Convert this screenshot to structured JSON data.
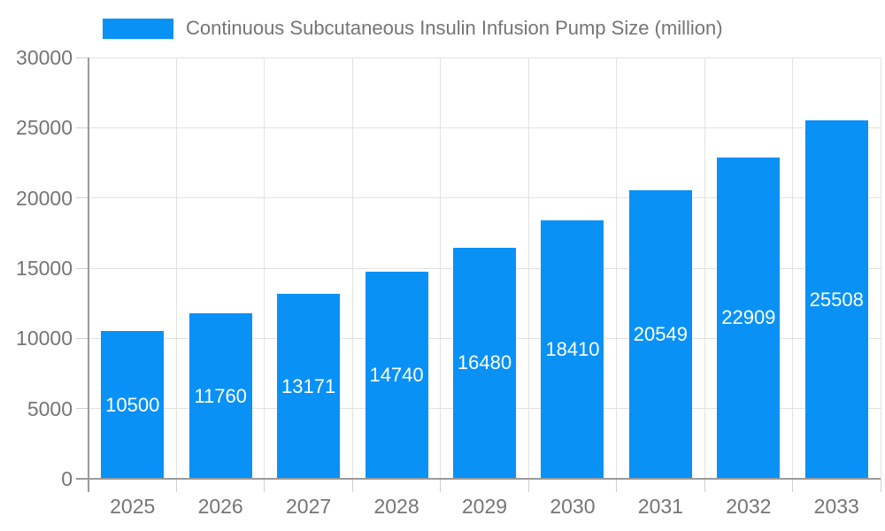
{
  "legend": {
    "label": "Continuous Subcutaneous Insulin Infusion Pump Size (million)"
  },
  "chart_data": {
    "type": "bar",
    "title": "Continuous Subcutaneous Insulin Infusion Pump Size (million)",
    "categories": [
      "2025",
      "2026",
      "2027",
      "2028",
      "2029",
      "2030",
      "2031",
      "2032",
      "2033"
    ],
    "values": [
      10500,
      11760,
      13171,
      14740,
      16480,
      18410,
      20549,
      22909,
      25508
    ],
    "xlabel": "",
    "ylabel": "",
    "ylim": [
      0,
      30000
    ],
    "yticks": [
      0,
      5000,
      10000,
      15000,
      20000,
      25000,
      30000
    ],
    "grid": true,
    "legend_position": "top-left",
    "value_labels": "inside-center-white",
    "colors": {
      "bar": "#0991f6",
      "value_label": "#ffffff",
      "grid": "#e2e2e2",
      "axis": "#9a9a9a",
      "tick": "#cfcfcf",
      "text": "#757575",
      "background": "#ffffff"
    }
  }
}
